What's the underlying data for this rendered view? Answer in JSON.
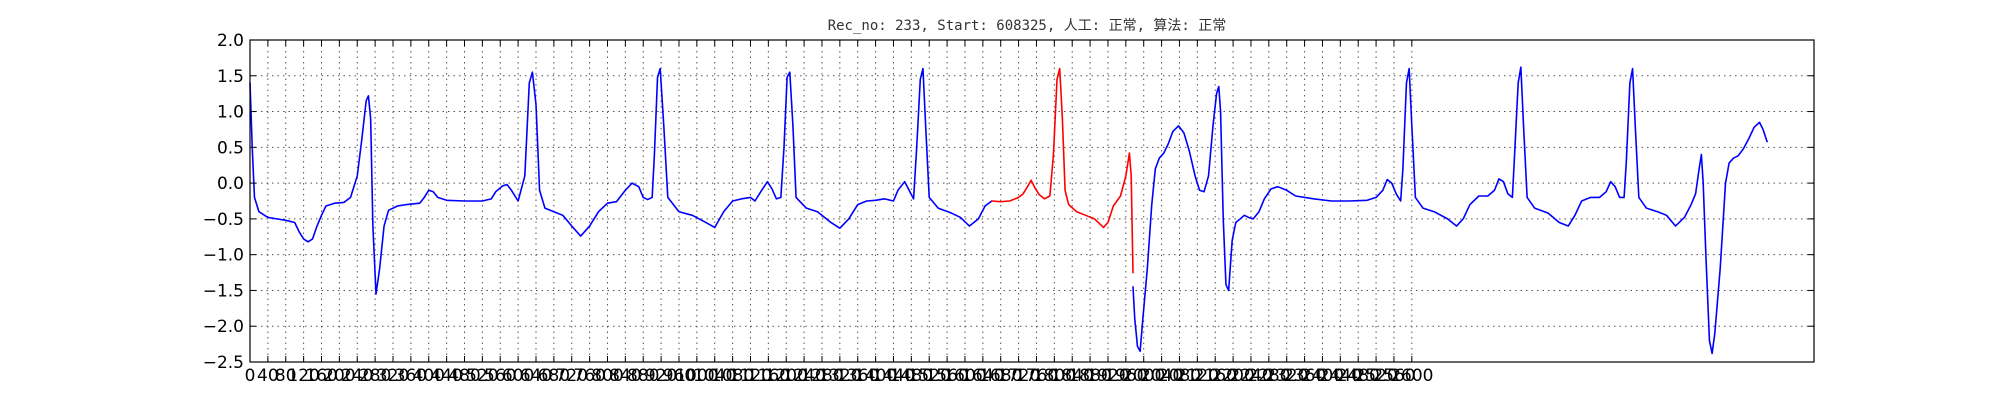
{
  "chart_data": {
    "type": "line",
    "title": "Rec_no: 233, Start: 608325, 人工: 正常, 算法: 正常",
    "xlabel": "",
    "ylabel": "",
    "xlim": [
      0,
      3500
    ],
    "ylim": [
      -2.5,
      2.0
    ],
    "grid": true,
    "y_ticks": [
      "2.0",
      "1.5",
      "1.0",
      "0.5",
      "0.0",
      "−0.5",
      "−1.0",
      "−1.5",
      "−2.0",
      "−2.5"
    ],
    "y_tick_values": [
      2.0,
      1.5,
      1.0,
      0.5,
      0.0,
      -0.5,
      -1.0,
      -1.5,
      -2.0,
      -2.5
    ],
    "x_tick_values": [
      0,
      40,
      80,
      120,
      160,
      200,
      240,
      280,
      320,
      360,
      400,
      440,
      480,
      520,
      560,
      600,
      640,
      680,
      720,
      760,
      800,
      840,
      880,
      920,
      960,
      1000,
      1040,
      1080,
      1120,
      1160,
      1200,
      1240,
      1280,
      1320,
      1360,
      1400,
      1440,
      1480,
      1520,
      1560,
      1600,
      1640,
      1680,
      1720,
      1760,
      1800,
      1840,
      1880,
      1920,
      1960,
      2000,
      2040,
      2080,
      2120,
      2160,
      2200,
      2240,
      2280,
      2320,
      2360,
      2400,
      2440,
      2480,
      2520,
      2560,
      2600
    ],
    "x_tick_labels": [
      "0",
      "40",
      "80",
      "120",
      "160",
      "200",
      "240",
      "280",
      "320",
      "360",
      "400",
      "440",
      "480",
      "520",
      "560",
      "600",
      "640",
      "680",
      "720",
      "760",
      "800",
      "840",
      "880",
      "920",
      "960",
      "1000",
      "1040",
      "1080",
      "1120",
      "1160",
      "1200",
      "1240",
      "1280",
      "1320",
      "1360",
      "1400",
      "1440",
      "1480",
      "1520",
      "1560",
      "1600",
      "1640",
      "1680",
      "1720",
      "1760",
      "1800",
      "1840",
      "1880",
      "1920",
      "1960",
      "2000",
      "2040",
      "2080",
      "2120",
      "2160",
      "2200",
      "2240",
      "2280",
      "2320",
      "2360",
      "2400",
      "2440",
      "2480",
      "2520",
      "2560",
      "2600"
    ],
    "series": [
      {
        "color": "#0000ff",
        "points": [
          [
            0,
            1.4
          ],
          [
            5,
            0.5
          ],
          [
            10,
            -0.2
          ],
          [
            20,
            -0.4
          ],
          [
            40,
            -0.48
          ],
          [
            60,
            -0.5
          ],
          [
            80,
            -0.52
          ],
          [
            100,
            -0.55
          ],
          [
            110,
            -0.68
          ],
          [
            120,
            -0.78
          ],
          [
            130,
            -0.82
          ],
          [
            140,
            -0.78
          ],
          [
            150,
            -0.6
          ],
          [
            160,
            -0.45
          ],
          [
            170,
            -0.32
          ],
          [
            190,
            -0.28
          ],
          [
            210,
            -0.27
          ],
          [
            225,
            -0.2
          ],
          [
            240,
            0.1
          ],
          [
            250,
            0.6
          ],
          [
            260,
            1.15
          ],
          [
            265,
            1.22
          ],
          [
            270,
            0.9
          ],
          [
            275,
            -0.6
          ],
          [
            282,
            -1.55
          ],
          [
            290,
            -1.2
          ],
          [
            300,
            -0.6
          ],
          [
            310,
            -0.38
          ],
          [
            330,
            -0.32
          ],
          [
            350,
            -0.3
          ],
          [
            380,
            -0.28
          ],
          [
            390,
            -0.2
          ],
          [
            400,
            -0.1
          ],
          [
            410,
            -0.12
          ],
          [
            420,
            -0.2
          ],
          [
            440,
            -0.24
          ],
          [
            480,
            -0.25
          ],
          [
            520,
            -0.25
          ],
          [
            540,
            -0.22
          ],
          [
            550,
            -0.12
          ],
          [
            565,
            -0.04
          ],
          [
            575,
            -0.02
          ],
          [
            585,
            -0.1
          ],
          [
            600,
            -0.25
          ],
          [
            615,
            0.1
          ],
          [
            625,
            1.4
          ],
          [
            632,
            1.55
          ],
          [
            640,
            1.1
          ],
          [
            648,
            -0.1
          ],
          [
            660,
            -0.35
          ],
          [
            680,
            -0.4
          ],
          [
            700,
            -0.45
          ],
          [
            720,
            -0.6
          ],
          [
            740,
            -0.74
          ],
          [
            760,
            -0.6
          ],
          [
            780,
            -0.4
          ],
          [
            800,
            -0.28
          ],
          [
            820,
            -0.26
          ],
          [
            840,
            -0.1
          ],
          [
            855,
            0.0
          ],
          [
            870,
            -0.05
          ],
          [
            880,
            -0.2
          ],
          [
            890,
            -0.23
          ],
          [
            900,
            -0.2
          ],
          [
            905,
            0.4
          ],
          [
            912,
            1.48
          ],
          [
            918,
            1.6
          ],
          [
            926,
            0.8
          ],
          [
            935,
            -0.2
          ],
          [
            960,
            -0.4
          ],
          [
            990,
            -0.45
          ],
          [
            1020,
            -0.55
          ],
          [
            1040,
            -0.62
          ],
          [
            1060,
            -0.4
          ],
          [
            1080,
            -0.25
          ],
          [
            1100,
            -0.22
          ],
          [
            1120,
            -0.2
          ],
          [
            1130,
            -0.25
          ],
          [
            1145,
            -0.1
          ],
          [
            1158,
            0.02
          ],
          [
            1168,
            -0.08
          ],
          [
            1178,
            -0.22
          ],
          [
            1188,
            -0.2
          ],
          [
            1195,
            0.5
          ],
          [
            1202,
            1.48
          ],
          [
            1208,
            1.55
          ],
          [
            1215,
            0.8
          ],
          [
            1222,
            -0.2
          ],
          [
            1245,
            -0.35
          ],
          [
            1270,
            -0.4
          ],
          [
            1300,
            -0.55
          ],
          [
            1320,
            -0.63
          ],
          [
            1340,
            -0.5
          ],
          [
            1360,
            -0.3
          ],
          [
            1380,
            -0.25
          ],
          [
            1400,
            -0.24
          ],
          [
            1420,
            -0.22
          ],
          [
            1440,
            -0.25
          ],
          [
            1450,
            -0.1
          ],
          [
            1465,
            0.02
          ],
          [
            1475,
            -0.1
          ],
          [
            1485,
            -0.22
          ],
          [
            1492,
            0.5
          ],
          [
            1500,
            1.45
          ],
          [
            1506,
            1.6
          ],
          [
            1512,
            0.8
          ],
          [
            1520,
            -0.2
          ],
          [
            1540,
            -0.35
          ],
          [
            1570,
            -0.42
          ],
          [
            1590,
            -0.48
          ],
          [
            1610,
            -0.6
          ],
          [
            1630,
            -0.5
          ],
          [
            1645,
            -0.32
          ],
          [
            1660,
            -0.25
          ]
        ]
      },
      {
        "color": "#ff0000",
        "points": [
          [
            1660,
            -0.25
          ],
          [
            1680,
            -0.26
          ],
          [
            1700,
            -0.25
          ],
          [
            1720,
            -0.2
          ],
          [
            1730,
            -0.15
          ],
          [
            1740,
            -0.05
          ],
          [
            1748,
            0.04
          ],
          [
            1756,
            -0.06
          ],
          [
            1766,
            -0.16
          ],
          [
            1778,
            -0.22
          ],
          [
            1790,
            -0.18
          ],
          [
            1798,
            0.4
          ],
          [
            1806,
            1.45
          ],
          [
            1812,
            1.6
          ],
          [
            1818,
            0.9
          ],
          [
            1824,
            -0.1
          ],
          [
            1832,
            -0.3
          ],
          [
            1850,
            -0.4
          ],
          [
            1870,
            -0.45
          ],
          [
            1890,
            -0.5
          ],
          [
            1910,
            -0.62
          ],
          [
            1920,
            -0.55
          ],
          [
            1932,
            -0.32
          ],
          [
            1948,
            -0.18
          ],
          [
            1960,
            0.1
          ],
          [
            1968,
            0.42
          ],
          [
            1972,
            0.1
          ],
          [
            1976,
            -1.25
          ]
        ]
      },
      {
        "color": "#0000ff",
        "points": [
          [
            1976,
            -1.45
          ],
          [
            1980,
            -1.9
          ],
          [
            1986,
            -2.28
          ],
          [
            1992,
            -2.35
          ],
          [
            1998,
            -1.9
          ],
          [
            2008,
            -1.2
          ],
          [
            2018,
            -0.3
          ],
          [
            2026,
            0.2
          ],
          [
            2035,
            0.35
          ],
          [
            2045,
            0.42
          ],
          [
            2055,
            0.55
          ],
          [
            2065,
            0.72
          ],
          [
            2078,
            0.8
          ],
          [
            2090,
            0.7
          ],
          [
            2102,
            0.45
          ],
          [
            2115,
            0.1
          ],
          [
            2125,
            -0.1
          ],
          [
            2135,
            -0.12
          ],
          [
            2145,
            0.1
          ],
          [
            2155,
            0.8
          ],
          [
            2163,
            1.25
          ],
          [
            2168,
            1.35
          ],
          [
            2172,
            1.0
          ],
          [
            2178,
            -0.5
          ],
          [
            2184,
            -1.42
          ],
          [
            2190,
            -1.5
          ],
          [
            2198,
            -0.8
          ],
          [
            2206,
            -0.55
          ],
          [
            2216,
            -0.5
          ],
          [
            2225,
            -0.45
          ],
          [
            2235,
            -0.48
          ],
          [
            2245,
            -0.5
          ],
          [
            2258,
            -0.4
          ],
          [
            2270,
            -0.22
          ],
          [
            2285,
            -0.08
          ],
          [
            2300,
            -0.05
          ],
          [
            2320,
            -0.1
          ],
          [
            2340,
            -0.18
          ],
          [
            2380,
            -0.22
          ],
          [
            2420,
            -0.25
          ],
          [
            2460,
            -0.25
          ],
          [
            2500,
            -0.24
          ],
          [
            2520,
            -0.2
          ],
          [
            2535,
            -0.1
          ],
          [
            2545,
            0.05
          ],
          [
            2555,
            0.0
          ],
          [
            2565,
            -0.15
          ],
          [
            2575,
            -0.25
          ],
          [
            2580,
            0.2
          ],
          [
            2588,
            1.4
          ],
          [
            2594,
            1.6
          ],
          [
            2600,
            0.8
          ],
          [
            2608,
            -0.2
          ],
          [
            2625,
            -0.35
          ],
          [
            2650,
            -0.4
          ],
          [
            2680,
            -0.5
          ],
          [
            2700,
            -0.6
          ],
          [
            2715,
            -0.5
          ],
          [
            2730,
            -0.3
          ],
          [
            2750,
            -0.18
          ],
          [
            2770,
            -0.18
          ],
          [
            2785,
            -0.1
          ],
          [
            2795,
            0.06
          ],
          [
            2805,
            0.02
          ],
          [
            2815,
            -0.15
          ],
          [
            2825,
            -0.2
          ],
          [
            2830,
            0.4
          ],
          [
            2838,
            1.4
          ],
          [
            2844,
            1.62
          ],
          [
            2850,
            0.8
          ],
          [
            2858,
            -0.2
          ],
          [
            2875,
            -0.35
          ],
          [
            2905,
            -0.42
          ],
          [
            2930,
            -0.55
          ],
          [
            2950,
            -0.6
          ],
          [
            2965,
            -0.45
          ],
          [
            2980,
            -0.25
          ],
          [
            3000,
            -0.2
          ],
          [
            3020,
            -0.2
          ],
          [
            3035,
            -0.12
          ],
          [
            3045,
            0.02
          ],
          [
            3055,
            -0.05
          ],
          [
            3065,
            -0.2
          ],
          [
            3075,
            -0.2
          ],
          [
            3080,
            0.3
          ],
          [
            3088,
            1.4
          ],
          [
            3094,
            1.6
          ],
          [
            3100,
            0.8
          ],
          [
            3108,
            -0.2
          ],
          [
            3125,
            -0.35
          ],
          [
            3150,
            -0.4
          ],
          [
            3170,
            -0.45
          ],
          [
            3190,
            -0.6
          ],
          [
            3210,
            -0.48
          ],
          [
            3225,
            -0.3
          ],
          [
            3235,
            -0.15
          ],
          [
            3243,
            0.2
          ],
          [
            3248,
            0.4
          ],
          [
            3252,
            0.0
          ],
          [
            3258,
            -1.0
          ],
          [
            3266,
            -2.2
          ],
          [
            3272,
            -2.38
          ],
          [
            3278,
            -2.1
          ],
          [
            3290,
            -1.2
          ],
          [
            3302,
            0.0
          ],
          [
            3310,
            0.28
          ],
          [
            3320,
            0.35
          ],
          [
            3330,
            0.38
          ],
          [
            3342,
            0.48
          ],
          [
            3354,
            0.62
          ],
          [
            3366,
            0.78
          ],
          [
            3378,
            0.85
          ],
          [
            3386,
            0.75
          ],
          [
            3395,
            0.58
          ]
        ]
      }
    ]
  }
}
